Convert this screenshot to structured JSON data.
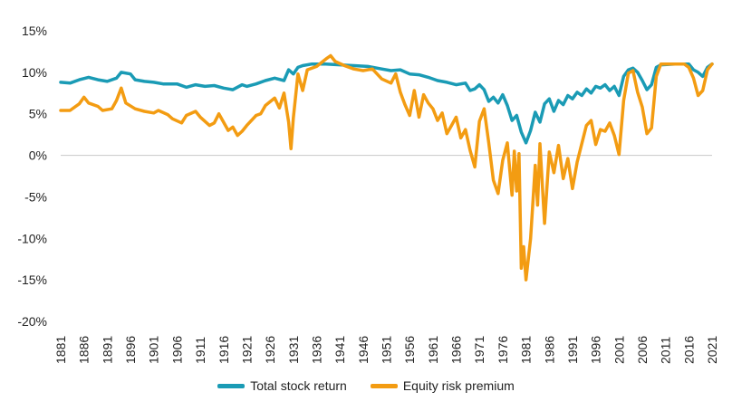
{
  "chart_data": {
    "type": "line",
    "title": "",
    "xlabel": "",
    "ylabel": "",
    "ylim": [
      -20,
      15
    ],
    "xlim": [
      1881,
      2021
    ],
    "grid": false,
    "legend_position": "bottom",
    "x_ticks": [
      "1881",
      "1886",
      "1891",
      "1896",
      "1901",
      "1906",
      "1911",
      "1916",
      "1921",
      "1926",
      "1931",
      "1936",
      "1941",
      "1946",
      "1951",
      "1956",
      "1961",
      "1966",
      "1971",
      "1976",
      "1981",
      "1986",
      "1991",
      "1996",
      "2001",
      "2006",
      "2011",
      "2016",
      "2021"
    ],
    "y_ticks": [
      {
        "value": 15,
        "label": "15%"
      },
      {
        "value": 10,
        "label": "10%"
      },
      {
        "value": 5,
        "label": "5%"
      },
      {
        "value": 0,
        "label": "0%"
      },
      {
        "value": -5,
        "label": "-5%"
      },
      {
        "value": -10,
        "label": "-10%"
      },
      {
        "value": -15,
        "label": "-15%"
      },
      {
        "value": -20,
        "label": "-20%"
      }
    ],
    "series": [
      {
        "name": "Total stock return",
        "color": "#1a9bb5",
        "points": [
          [
            1881,
            8.8
          ],
          [
            1883,
            8.7
          ],
          [
            1885,
            9.1
          ],
          [
            1887,
            9.4
          ],
          [
            1889,
            9.1
          ],
          [
            1891,
            8.9
          ],
          [
            1893,
            9.3
          ],
          [
            1894,
            10.0
          ],
          [
            1896,
            9.8
          ],
          [
            1897,
            9.1
          ],
          [
            1899,
            8.9
          ],
          [
            1901,
            8.8
          ],
          [
            1903,
            8.6
          ],
          [
            1906,
            8.6
          ],
          [
            1908,
            8.2
          ],
          [
            1910,
            8.5
          ],
          [
            1912,
            8.3
          ],
          [
            1914,
            8.4
          ],
          [
            1916,
            8.1
          ],
          [
            1918,
            7.9
          ],
          [
            1920,
            8.5
          ],
          [
            1921,
            8.3
          ],
          [
            1923,
            8.6
          ],
          [
            1925,
            9.0
          ],
          [
            1927,
            9.3
          ],
          [
            1929,
            9.0
          ],
          [
            1930,
            10.3
          ],
          [
            1931,
            9.8
          ],
          [
            1932,
            10.6
          ],
          [
            1933,
            10.8
          ],
          [
            1935,
            11.0
          ],
          [
            1938,
            11.0
          ],
          [
            1941,
            10.9
          ],
          [
            1944,
            10.8
          ],
          [
            1947,
            10.7
          ],
          [
            1950,
            10.4
          ],
          [
            1952,
            10.2
          ],
          [
            1954,
            10.3
          ],
          [
            1956,
            9.8
          ],
          [
            1958,
            9.7
          ],
          [
            1960,
            9.4
          ],
          [
            1962,
            9.0
          ],
          [
            1964,
            8.8
          ],
          [
            1966,
            8.5
          ],
          [
            1968,
            8.7
          ],
          [
            1969,
            7.8
          ],
          [
            1970,
            8.0
          ],
          [
            1971,
            8.5
          ],
          [
            1972,
            7.9
          ],
          [
            1973,
            6.5
          ],
          [
            1974,
            7.0
          ],
          [
            1975,
            6.3
          ],
          [
            1976,
            7.3
          ],
          [
            1977,
            6.0
          ],
          [
            1978,
            4.2
          ],
          [
            1979,
            4.8
          ],
          [
            1980,
            2.8
          ],
          [
            1981,
            1.5
          ],
          [
            1982,
            3.0
          ],
          [
            1983,
            5.2
          ],
          [
            1984,
            4.0
          ],
          [
            1985,
            6.2
          ],
          [
            1986,
            6.8
          ],
          [
            1987,
            5.3
          ],
          [
            1988,
            6.6
          ],
          [
            1989,
            6.1
          ],
          [
            1990,
            7.2
          ],
          [
            1991,
            6.8
          ],
          [
            1992,
            7.6
          ],
          [
            1993,
            7.2
          ],
          [
            1994,
            8.0
          ],
          [
            1995,
            7.5
          ],
          [
            1996,
            8.3
          ],
          [
            1997,
            8.1
          ],
          [
            1998,
            8.5
          ],
          [
            1999,
            7.8
          ],
          [
            2000,
            8.3
          ],
          [
            2001,
            7.2
          ],
          [
            2002,
            9.5
          ],
          [
            2003,
            10.3
          ],
          [
            2004,
            10.5
          ],
          [
            2005,
            10.0
          ],
          [
            2006,
            9.0
          ],
          [
            2007,
            7.9
          ],
          [
            2008,
            8.5
          ],
          [
            2009,
            10.6
          ],
          [
            2010,
            10.9
          ],
          [
            2013,
            11.0
          ],
          [
            2016,
            11.0
          ],
          [
            2017,
            10.3
          ],
          [
            2018,
            10.0
          ],
          [
            2019,
            9.5
          ],
          [
            2020,
            10.6
          ],
          [
            2021,
            11.0
          ]
        ]
      },
      {
        "name": "Equity risk premium",
        "color": "#f39c12",
        "points": [
          [
            1881,
            5.4
          ],
          [
            1883,
            5.4
          ],
          [
            1885,
            6.2
          ],
          [
            1886,
            7.0
          ],
          [
            1887,
            6.3
          ],
          [
            1889,
            5.9
          ],
          [
            1890,
            5.4
          ],
          [
            1892,
            5.6
          ],
          [
            1893,
            6.6
          ],
          [
            1894,
            8.1
          ],
          [
            1895,
            6.3
          ],
          [
            1897,
            5.6
          ],
          [
            1899,
            5.3
          ],
          [
            1901,
            5.1
          ],
          [
            1902,
            5.4
          ],
          [
            1904,
            4.9
          ],
          [
            1905,
            4.4
          ],
          [
            1907,
            3.9
          ],
          [
            1908,
            4.8
          ],
          [
            1910,
            5.3
          ],
          [
            1911,
            4.6
          ],
          [
            1913,
            3.6
          ],
          [
            1914,
            3.9
          ],
          [
            1915,
            5.0
          ],
          [
            1917,
            3.0
          ],
          [
            1918,
            3.4
          ],
          [
            1919,
            2.4
          ],
          [
            1920,
            2.9
          ],
          [
            1921,
            3.6
          ],
          [
            1923,
            4.8
          ],
          [
            1924,
            5.0
          ],
          [
            1925,
            6.0
          ],
          [
            1927,
            6.9
          ],
          [
            1928,
            5.7
          ],
          [
            1929,
            7.5
          ],
          [
            1930,
            4.0
          ],
          [
            1930.5,
            0.8
          ],
          [
            1931,
            4.5
          ],
          [
            1932,
            9.8
          ],
          [
            1933,
            7.8
          ],
          [
            1934,
            10.3
          ],
          [
            1936,
            10.7
          ],
          [
            1938,
            11.6
          ],
          [
            1939,
            12.0
          ],
          [
            1940,
            11.3
          ],
          [
            1942,
            10.8
          ],
          [
            1944,
            10.4
          ],
          [
            1946,
            10.2
          ],
          [
            1948,
            10.4
          ],
          [
            1950,
            9.2
          ],
          [
            1952,
            8.7
          ],
          [
            1953,
            9.8
          ],
          [
            1954,
            7.6
          ],
          [
            1955,
            6.1
          ],
          [
            1956,
            4.8
          ],
          [
            1957,
            7.8
          ],
          [
            1958,
            4.6
          ],
          [
            1959,
            7.3
          ],
          [
            1960,
            6.3
          ],
          [
            1961,
            5.6
          ],
          [
            1962,
            4.2
          ],
          [
            1963,
            5.1
          ],
          [
            1964,
            2.6
          ],
          [
            1965,
            3.6
          ],
          [
            1966,
            4.6
          ],
          [
            1967,
            2.1
          ],
          [
            1968,
            3.1
          ],
          [
            1969,
            0.6
          ],
          [
            1970,
            -1.4
          ],
          [
            1971,
            4.1
          ],
          [
            1972,
            5.6
          ],
          [
            1973,
            1.5
          ],
          [
            1974,
            -3.0
          ],
          [
            1975,
            -4.6
          ],
          [
            1976,
            -0.6
          ],
          [
            1977,
            1.5
          ],
          [
            1978,
            -4.8
          ],
          [
            1978.5,
            0.5
          ],
          [
            1979,
            -4.3
          ],
          [
            1979.5,
            0.2
          ],
          [
            1980,
            -13.6
          ],
          [
            1980.5,
            -11.0
          ],
          [
            1981,
            -15.0
          ],
          [
            1982,
            -10.0
          ],
          [
            1983,
            -1.2
          ],
          [
            1983.5,
            -6.0
          ],
          [
            1984,
            1.4
          ],
          [
            1985,
            -8.2
          ],
          [
            1986,
            0.4
          ],
          [
            1987,
            -2.1
          ],
          [
            1988,
            1.2
          ],
          [
            1989,
            -2.8
          ],
          [
            1990,
            -0.4
          ],
          [
            1991,
            -4.0
          ],
          [
            1992,
            -0.8
          ],
          [
            1993,
            1.4
          ],
          [
            1994,
            3.6
          ],
          [
            1995,
            4.2
          ],
          [
            1996,
            1.3
          ],
          [
            1997,
            3.1
          ],
          [
            1998,
            2.9
          ],
          [
            1999,
            3.9
          ],
          [
            2000,
            2.4
          ],
          [
            2001,
            0.1
          ],
          [
            2002,
            6.6
          ],
          [
            2003,
            9.9
          ],
          [
            2004,
            10.2
          ],
          [
            2005,
            7.6
          ],
          [
            2006,
            5.8
          ],
          [
            2007,
            2.6
          ],
          [
            2008,
            3.3
          ],
          [
            2009,
            9.5
          ],
          [
            2010,
            11.0
          ],
          [
            2012,
            11.0
          ],
          [
            2015,
            11.0
          ],
          [
            2016,
            10.6
          ],
          [
            2017,
            9.3
          ],
          [
            2018,
            7.2
          ],
          [
            2019,
            7.8
          ],
          [
            2020,
            10.3
          ],
          [
            2021,
            11.0
          ]
        ]
      }
    ]
  }
}
